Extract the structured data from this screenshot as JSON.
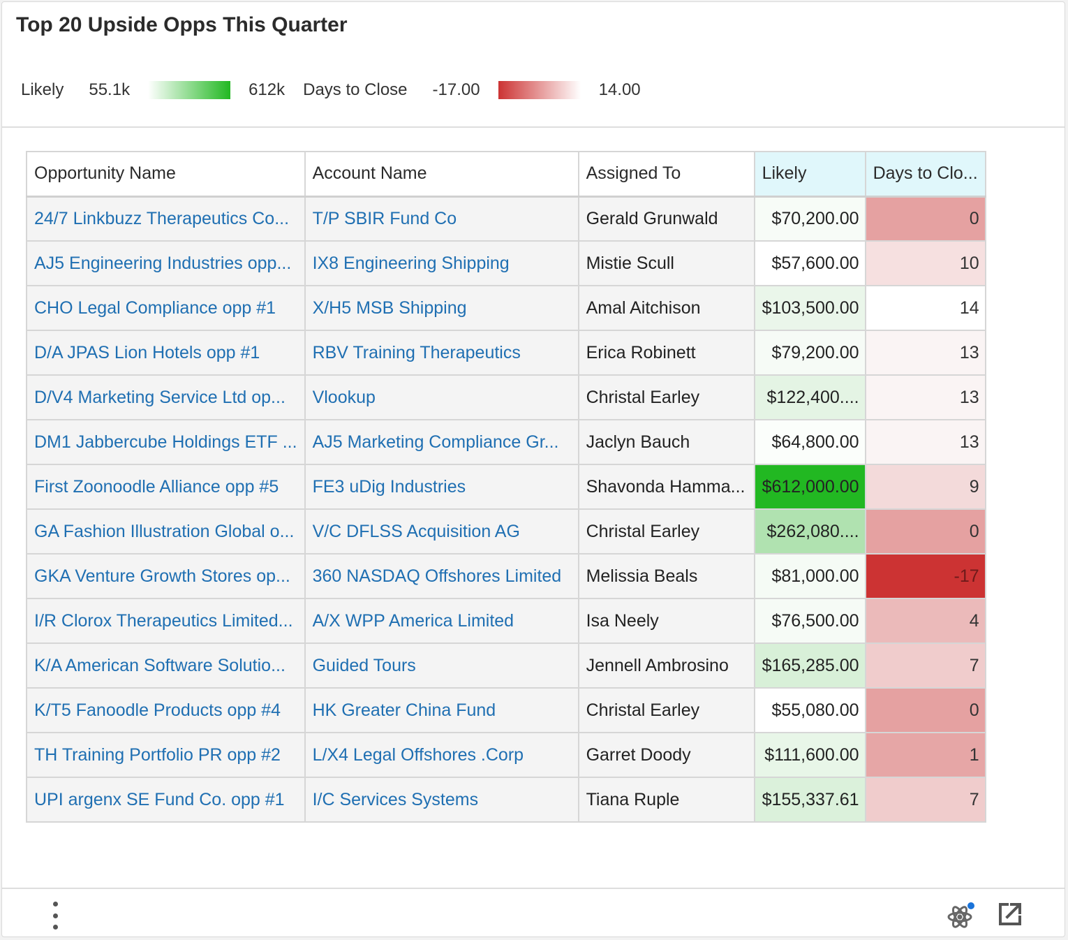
{
  "dashlet": {
    "title": "Top 20 Upside Opps This Quarter"
  },
  "legend": {
    "likely": {
      "label": "Likely",
      "min": "55.1k",
      "max": "612k",
      "min_color": "#ffffff",
      "max_color": "#22b822"
    },
    "days": {
      "label": "Days to Close",
      "min": "-17.00",
      "max": "14.00",
      "min_color": "#cc3333",
      "max_color": "#ffffff"
    }
  },
  "table": {
    "columns": [
      "Opportunity Name",
      "Account Name",
      "Assigned To",
      "Likely",
      "Days to Clo..."
    ],
    "rows": [
      {
        "opportunity": "24/7 Linkbuzz Therapeutics Co...",
        "account": "T/P SBIR Fund Co",
        "assigned": "Gerald Grunwald",
        "likely": "$70,200.00",
        "likely_bg": "#f7fcf7",
        "days": "0",
        "days_bg": "#e5a1a1",
        "days_color": "#333"
      },
      {
        "opportunity": "AJ5 Engineering Industries opp...",
        "account": "IX8 Engineering Shipping",
        "assigned": "Mistie Scull",
        "likely": "$57,600.00",
        "likely_bg": "#ffffff",
        "days": "10",
        "days_bg": "#f6e0e0",
        "days_color": "#333"
      },
      {
        "opportunity": "CHO Legal Compliance opp #1",
        "account": "X/H5 MSB Shipping",
        "assigned": "Amal Aitchison",
        "likely": "$103,500.00",
        "likely_bg": "#eaf6ea",
        "days": "14",
        "days_bg": "#ffffff",
        "days_color": "#333"
      },
      {
        "opportunity": "D/A JPAS Lion Hotels opp #1",
        "account": "RBV Training Therapeutics",
        "assigned": "Erica Robinett",
        "likely": "$79,200.00",
        "likely_bg": "#f6fbf6",
        "days": "13",
        "days_bg": "#faf4f4",
        "days_color": "#333"
      },
      {
        "opportunity": "D/V4 Marketing Service Ltd op...",
        "account": "Vlookup",
        "assigned": "Christal Earley",
        "likely": "$122,400....",
        "likely_bg": "#e4f4e4",
        "days": "13",
        "days_bg": "#faf4f4",
        "days_color": "#333"
      },
      {
        "opportunity": "DM1 Jabbercube Holdings ETF ...",
        "account": "AJ5 Marketing Compliance Gr...",
        "assigned": "Jaclyn Bauch",
        "likely": "$64,800.00",
        "likely_bg": "#fbfefb",
        "days": "13",
        "days_bg": "#faf4f4",
        "days_color": "#333"
      },
      {
        "opportunity": "First Zoonoodle Alliance opp #5",
        "account": "FE3 uDig Industries",
        "assigned": "Shavonda Hamma...",
        "likely": "$612,000.00",
        "likely_bg": "#22b822",
        "days": "9",
        "days_bg": "#f3dada",
        "days_color": "#333"
      },
      {
        "opportunity": "GA Fashion Illustration Global o...",
        "account": "V/C DFLSS Acquisition AG",
        "assigned": "Christal Earley",
        "likely": "$262,080....",
        "likely_bg": "#b0e2b0",
        "days": "0",
        "days_bg": "#e5a1a1",
        "days_color": "#333"
      },
      {
        "opportunity": "GKA Venture Growth Stores op...",
        "account": "360 NASDAQ Offshores Limited",
        "assigned": "Melissia Beals",
        "likely": "$81,000.00",
        "likely_bg": "#f5fbf5",
        "days": "-17",
        "days_bg": "#cc3333",
        "days_color": "#6e1a1a"
      },
      {
        "opportunity": "I/R Clorox Therapeutics Limited...",
        "account": "A/X WPP America Limited",
        "assigned": "Isa Neely",
        "likely": "$76,500.00",
        "likely_bg": "#f6fbf6",
        "days": "4",
        "days_bg": "#ebbaba",
        "days_color": "#333"
      },
      {
        "opportunity": "K/A American Software Solutio...",
        "account": "Guided Tours",
        "assigned": "Jennell Ambrosino",
        "likely": "$165,285.00",
        "likely_bg": "#d8f0d8",
        "days": "7",
        "days_bg": "#f0cccc",
        "days_color": "#333"
      },
      {
        "opportunity": "K/T5 Fanoodle Products opp #4",
        "account": "HK Greater China Fund",
        "assigned": "Christal Earley",
        "likely": "$55,080.00",
        "likely_bg": "#ffffff",
        "days": "0",
        "days_bg": "#e5a1a1",
        "days_color": "#333"
      },
      {
        "opportunity": "TH Training Portfolio PR opp #2",
        "account": "L/X4 Legal Offshores .Corp",
        "assigned": "Garret Doody",
        "likely": "$111,600.00",
        "likely_bg": "#e8f6e8",
        "days": "1",
        "days_bg": "#e6a6a6",
        "days_color": "#333"
      },
      {
        "opportunity": "UPI argenx SE Fund Co. opp #1",
        "account": "I/C Services Systems",
        "assigned": "Tiana Ruple",
        "likely": "$155,337.61",
        "likely_bg": "#dbf1db",
        "days": "7",
        "days_bg": "#f0cccc",
        "days_color": "#333"
      }
    ]
  },
  "footer": {
    "menu_icon": "kebab-menu-icon",
    "atom_icon": "atom-icon",
    "export_icon": "external-link-icon",
    "atom_badge_color": "#1a73d9"
  }
}
